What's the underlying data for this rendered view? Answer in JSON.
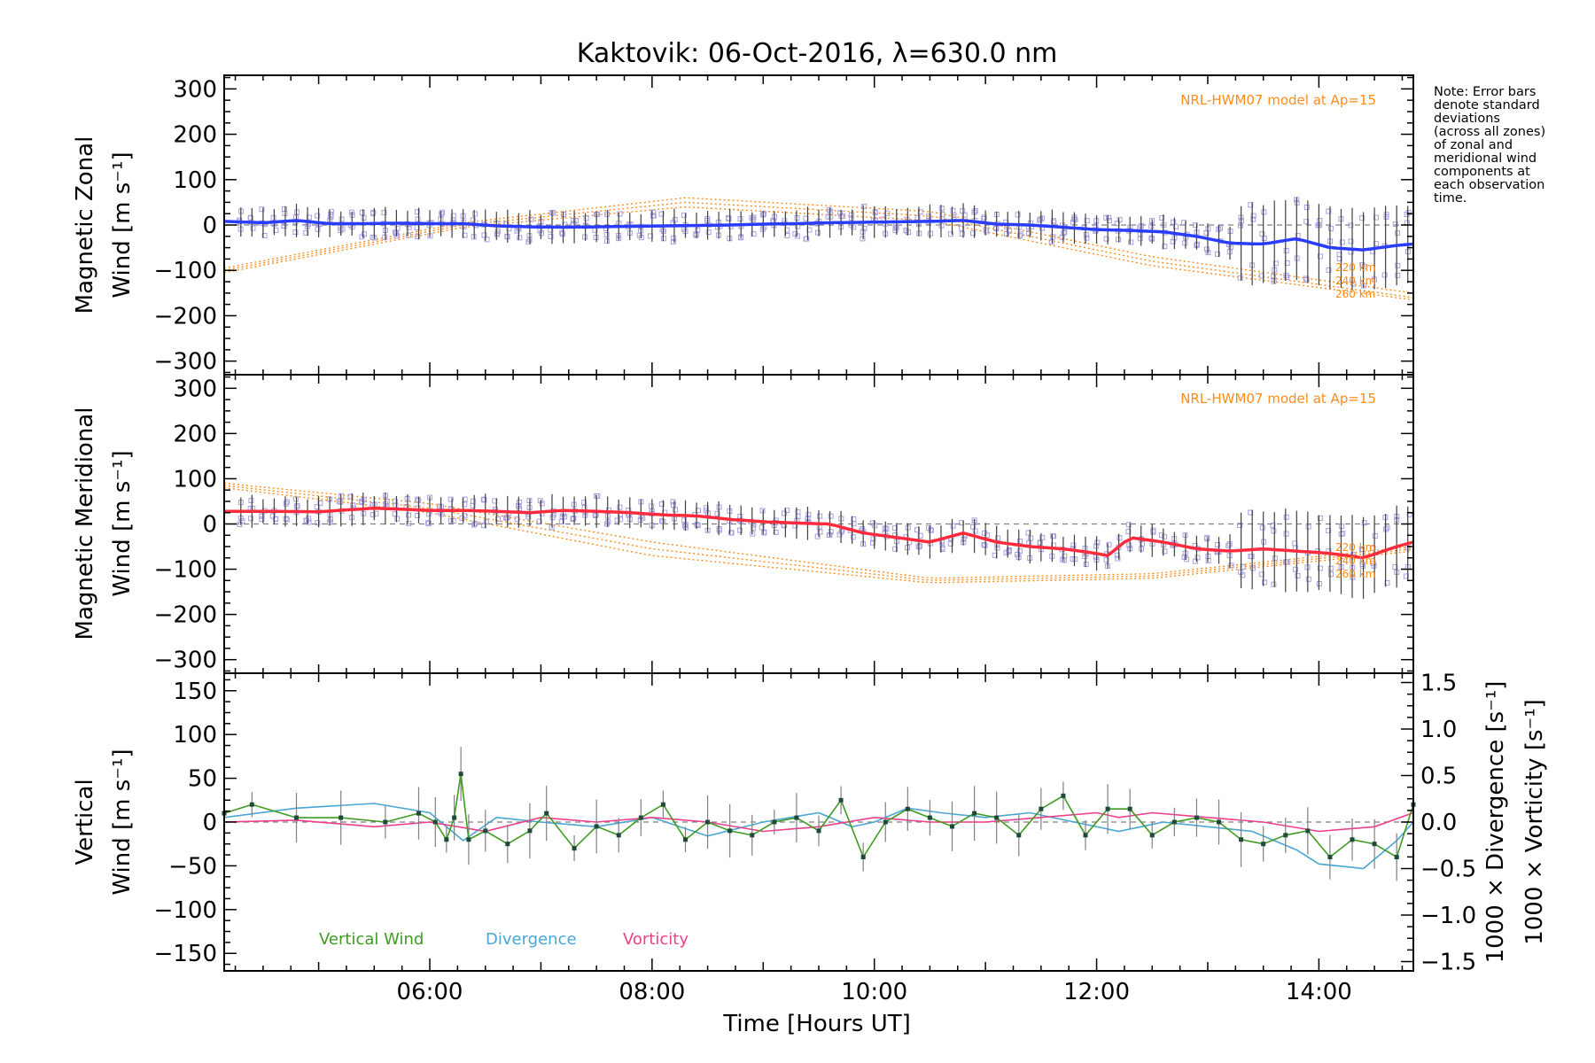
{
  "title": "Kaktovik: 06-Oct-2016, λ=630.0 nm",
  "note": [
    "Note: Error bars",
    "denote standard",
    "deviations",
    "(across all zones)",
    "of zonal and",
    "meridional wind",
    "components at",
    "each observation",
    "time."
  ],
  "xaxis": {
    "label": "Time [Hours UT]",
    "range_hours": [
      4.15,
      14.85
    ],
    "tick_hours": [
      6,
      8,
      10,
      12,
      14
    ],
    "tick_labels": [
      "06:00",
      "08:00",
      "10:00",
      "12:00",
      "14:00"
    ]
  },
  "colors": {
    "zonal": "#2a3dff",
    "meridional": "#ff2b3d",
    "vertical": "#3f9c21",
    "divergence": "#4aa6d4",
    "vorticity": "#ee3f8a",
    "model": "#ff8c1a",
    "scatter": "#a8a0e0",
    "errorbar": "#404040"
  },
  "chart_data": [
    {
      "type": "line",
      "panel": "zonal",
      "ylabel_line1": "Magnetic Zonal",
      "ylabel_line2": "Wind [m s⁻¹]",
      "ylim": [
        -330,
        330
      ],
      "yticks": [
        -300,
        -200,
        -100,
        0,
        100,
        200,
        300
      ],
      "ytick_labels": [
        "−300",
        "−200",
        "−100",
        "0",
        "100",
        "200",
        "300"
      ],
      "model_label": "NRL-HWM07 model at Ap=15",
      "model_alt_labels": [
        "220 km",
        "240 km",
        "260 km"
      ],
      "series": [
        {
          "x": [
            4.15,
            4.5,
            4.8,
            5.1,
            5.4,
            5.7,
            6.0,
            6.3,
            6.6,
            6.9,
            7.2,
            7.5,
            7.8,
            8.1,
            8.4,
            8.7,
            9.0,
            9.3,
            9.6,
            9.9,
            10.2,
            10.5,
            10.8,
            11.1,
            11.4,
            11.7,
            12.0,
            12.3,
            12.6,
            12.9,
            13.2,
            13.5,
            13.8,
            14.1,
            14.4,
            14.7,
            14.85
          ],
          "y": [
            8,
            5,
            10,
            3,
            3,
            4,
            3,
            3,
            -2,
            -4,
            -5,
            -4,
            -3,
            -2,
            -1,
            0,
            2,
            3,
            5,
            6,
            7,
            8,
            10,
            2,
            0,
            -5,
            -10,
            -12,
            -15,
            -25,
            -40,
            -42,
            -30,
            -50,
            -55,
            -45,
            -42
          ]
        }
      ],
      "model_curves": [
        {
          "x": [
            4.15,
            6.3,
            8.3,
            10.5,
            12.5,
            14.85
          ],
          "y": [
            -95,
            5,
            60,
            30,
            -70,
            -150
          ]
        },
        {
          "x": [
            4.15,
            6.3,
            8.3,
            10.5,
            12.5,
            14.85
          ],
          "y": [
            -100,
            0,
            50,
            20,
            -80,
            -160
          ]
        },
        {
          "x": [
            4.15,
            6.3,
            8.3,
            10.5,
            12.5,
            14.85
          ],
          "y": [
            -105,
            -5,
            40,
            10,
            -90,
            -165
          ]
        }
      ]
    },
    {
      "type": "line",
      "panel": "meridional",
      "ylabel_line1": "Magnetic Meridional",
      "ylabel_line2": "Wind [m s⁻¹]",
      "ylim": [
        -330,
        330
      ],
      "yticks": [
        -300,
        -200,
        -100,
        0,
        100,
        200,
        300
      ],
      "ytick_labels": [
        "−300",
        "−200",
        "−100",
        "0",
        "100",
        "200",
        "300"
      ],
      "model_label": "NRL-HWM07 model at Ap=15",
      "model_alt_labels": [
        "220 km",
        "240 km",
        "260 km"
      ],
      "series": [
        {
          "x": [
            4.15,
            4.5,
            5.0,
            5.5,
            6.0,
            6.3,
            6.6,
            6.9,
            7.2,
            7.5,
            7.8,
            8.1,
            8.4,
            8.7,
            9.0,
            9.3,
            9.6,
            9.9,
            10.2,
            10.5,
            10.8,
            11.1,
            11.4,
            11.7,
            12.0,
            12.1,
            12.3,
            12.6,
            12.9,
            13.2,
            13.5,
            13.8,
            14.1,
            14.4,
            14.7,
            14.85
          ],
          "y": [
            28,
            28,
            27,
            35,
            30,
            30,
            28,
            25,
            30,
            28,
            25,
            20,
            18,
            10,
            5,
            2,
            0,
            -20,
            -30,
            -40,
            -20,
            -40,
            -50,
            -55,
            -65,
            -70,
            -30,
            -40,
            -55,
            -60,
            -55,
            -60,
            -65,
            -75,
            -50,
            -40
          ]
        }
      ],
      "model_curves": [
        {
          "x": [
            4.15,
            6.0,
            8.0,
            10.5,
            12.5,
            14.85
          ],
          "y": [
            90,
            45,
            -40,
            -120,
            -110,
            -50
          ]
        },
        {
          "x": [
            4.15,
            6.0,
            8.0,
            10.5,
            12.5,
            14.85
          ],
          "y": [
            85,
            35,
            -55,
            -125,
            -115,
            -55
          ]
        },
        {
          "x": [
            4.15,
            6.0,
            8.0,
            10.5,
            12.5,
            14.85
          ],
          "y": [
            80,
            25,
            -70,
            -130,
            -120,
            -60
          ]
        }
      ]
    },
    {
      "type": "line",
      "panel": "vertical",
      "ylabel_line1": "Vertical",
      "ylabel_line2": "Wind [m s⁻¹]",
      "ylim": [
        -170,
        170
      ],
      "yticks": [
        -150,
        -100,
        -50,
        0,
        50,
        100,
        150
      ],
      "ytick_labels": [
        "−150",
        "−100",
        "−50",
        "0",
        "50",
        "100",
        "150"
      ],
      "y2label_div": "1000 × Divergence [s⁻¹]",
      "y2label_vort": "1000 × Vorticity [s⁻¹]",
      "y2lim": [
        -1.6,
        1.6
      ],
      "y2ticks": [
        -1.5,
        -1.0,
        -0.5,
        0.0,
        0.5,
        1.0,
        1.5
      ],
      "y2tick_labels": [
        "−1.5",
        "−1.0",
        "−0.5",
        "0.0",
        "0.5",
        "1.0",
        "1.5"
      ],
      "legend": [
        "Vertical Wind",
        "Divergence",
        "Vorticity"
      ],
      "series": [
        {
          "name": "Vertical Wind",
          "x": [
            4.15,
            4.4,
            4.8,
            5.2,
            5.6,
            5.9,
            6.05,
            6.15,
            6.22,
            6.28,
            6.35,
            6.5,
            6.7,
            6.9,
            7.05,
            7.3,
            7.5,
            7.7,
            7.9,
            8.1,
            8.3,
            8.5,
            8.7,
            8.9,
            9.1,
            9.3,
            9.5,
            9.7,
            9.9,
            10.1,
            10.3,
            10.5,
            10.7,
            10.9,
            11.1,
            11.3,
            11.5,
            11.7,
            11.9,
            12.1,
            12.3,
            12.5,
            12.7,
            12.9,
            13.1,
            13.3,
            13.5,
            13.7,
            13.9,
            14.1,
            14.3,
            14.5,
            14.7,
            14.85
          ],
          "y": [
            10,
            20,
            5,
            5,
            0,
            10,
            0,
            -20,
            5,
            55,
            -20,
            -10,
            -25,
            -10,
            10,
            -30,
            -5,
            -15,
            5,
            20,
            -20,
            0,
            -10,
            -15,
            0,
            5,
            -10,
            25,
            -40,
            0,
            15,
            5,
            -5,
            10,
            5,
            -15,
            15,
            30,
            -15,
            15,
            15,
            -15,
            0,
            5,
            0,
            -20,
            -25,
            -15,
            -10,
            -40,
            -20,
            -25,
            -40,
            20
          ]
        },
        {
          "name": "Divergence",
          "x": [
            4.15,
            4.8,
            5.5,
            6.0,
            6.3,
            6.6,
            7.0,
            7.5,
            8.0,
            8.5,
            9.0,
            9.5,
            9.8,
            10.0,
            10.3,
            10.6,
            11.0,
            11.4,
            11.8,
            12.2,
            12.4,
            12.6,
            13.0,
            13.4,
            13.8,
            14.0,
            14.4,
            14.7,
            14.85
          ],
          "y": [
            0.05,
            0.15,
            0.2,
            0.1,
            -0.2,
            0.05,
            0.0,
            -0.05,
            0.05,
            -0.15,
            0.0,
            0.1,
            -0.05,
            0.0,
            0.15,
            0.1,
            0.05,
            0.1,
            0.0,
            -0.1,
            -0.05,
            0.0,
            -0.05,
            -0.1,
            -0.3,
            -0.45,
            -0.5,
            -0.2,
            0.0
          ]
        },
        {
          "name": "Vorticity",
          "x": [
            4.15,
            4.8,
            5.5,
            6.0,
            6.5,
            7.0,
            7.5,
            8.0,
            8.5,
            9.0,
            9.5,
            10.0,
            10.5,
            11.0,
            11.5,
            12.0,
            12.2,
            12.5,
            13.0,
            13.5,
            14.0,
            14.5,
            14.85
          ],
          "y": [
            0.0,
            0.02,
            -0.05,
            0.0,
            -0.1,
            0.05,
            0.0,
            0.05,
            0.0,
            -0.1,
            -0.05,
            0.05,
            0.0,
            0.0,
            0.05,
            0.1,
            0.05,
            0.1,
            0.05,
            0.0,
            -0.1,
            -0.05,
            0.1
          ]
        }
      ]
    }
  ]
}
